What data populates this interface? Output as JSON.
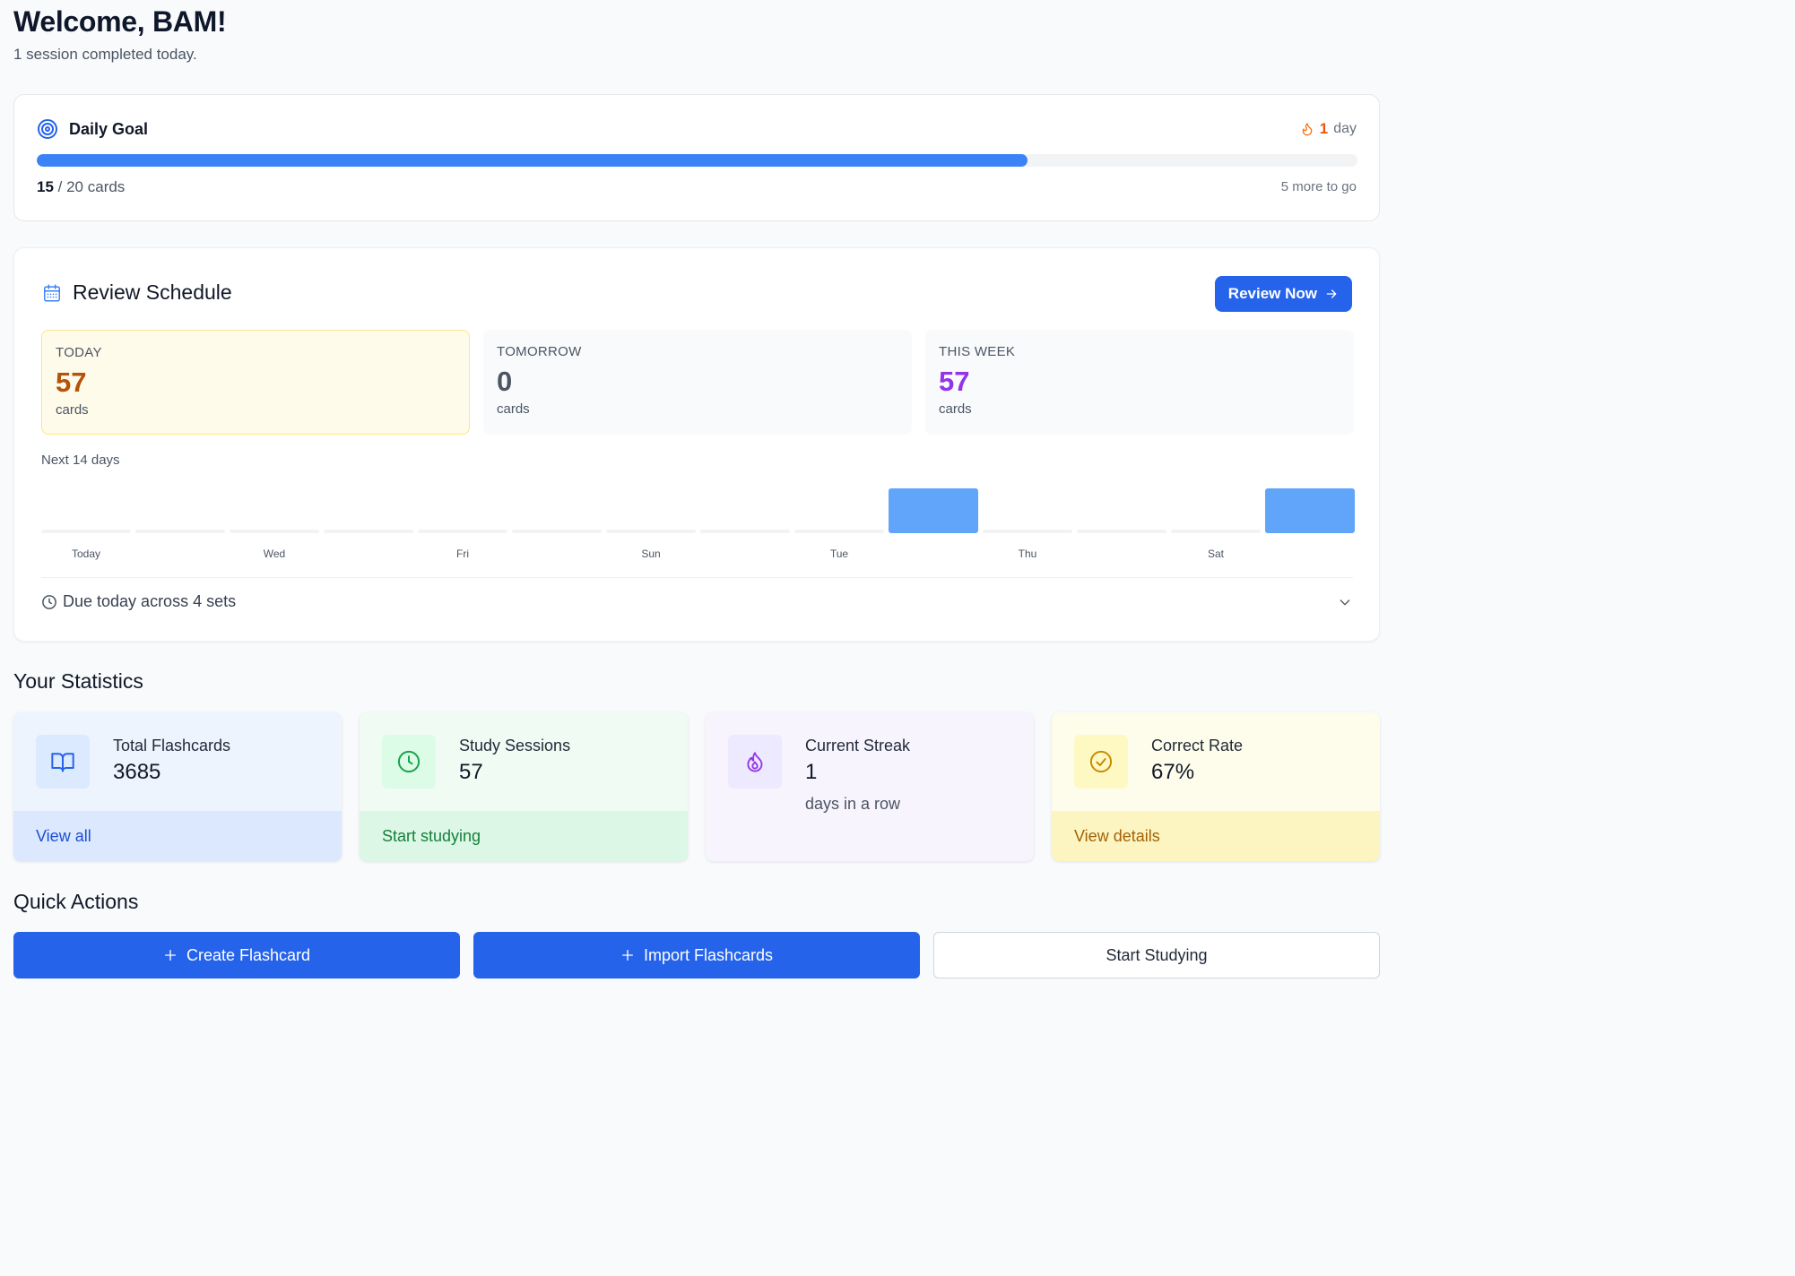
{
  "header": {
    "title": "Welcome, BAM!",
    "subtitle": "1 session completed today."
  },
  "daily_goal": {
    "title": "Daily Goal",
    "icon": "target-icon",
    "streak_count": "1",
    "streak_unit": "day",
    "completed": "15",
    "total_text": "/ 20 cards",
    "progress_fraction": 0.75,
    "remaining": "5 more to go"
  },
  "review_schedule": {
    "title": "Review Schedule",
    "button_label": "Review Now",
    "boxes": [
      {
        "label": "TODAY",
        "value": "57",
        "unit": "cards"
      },
      {
        "label": "TOMORROW",
        "value": "0",
        "unit": "cards"
      },
      {
        "label": "THIS WEEK",
        "value": "57",
        "unit": "cards"
      }
    ],
    "next_label": "Next 14 days",
    "chart_day_labels": [
      "Today",
      "Wed",
      "Fri",
      "Sun",
      "Tue",
      "Thu",
      "Sat"
    ],
    "daily_due_present": [
      0,
      0,
      0,
      0,
      0,
      0,
      0,
      0,
      0,
      1,
      0,
      0,
      0,
      1
    ],
    "due_text": "Due today across 4 sets"
  },
  "statistics": {
    "title": "Your Statistics",
    "cards": [
      {
        "label": "Total Flashcards",
        "value": "3685",
        "footer": "View all"
      },
      {
        "label": "Study Sessions",
        "value": "57",
        "footer": "Start studying"
      },
      {
        "label": "Current Streak",
        "value": "1",
        "extra": "days in a row"
      },
      {
        "label": "Correct Rate",
        "value": "67%",
        "footer": "View details"
      }
    ]
  },
  "quick_actions": {
    "title": "Quick Actions",
    "create_label": "Create Flashcard",
    "import_label": "Import Flashcards",
    "study_label": "Start Studying"
  },
  "colors": {
    "primary": "#2563eb",
    "progress": "#3b82f6",
    "bar": "#60a5fa",
    "streak": "#ea580c"
  }
}
